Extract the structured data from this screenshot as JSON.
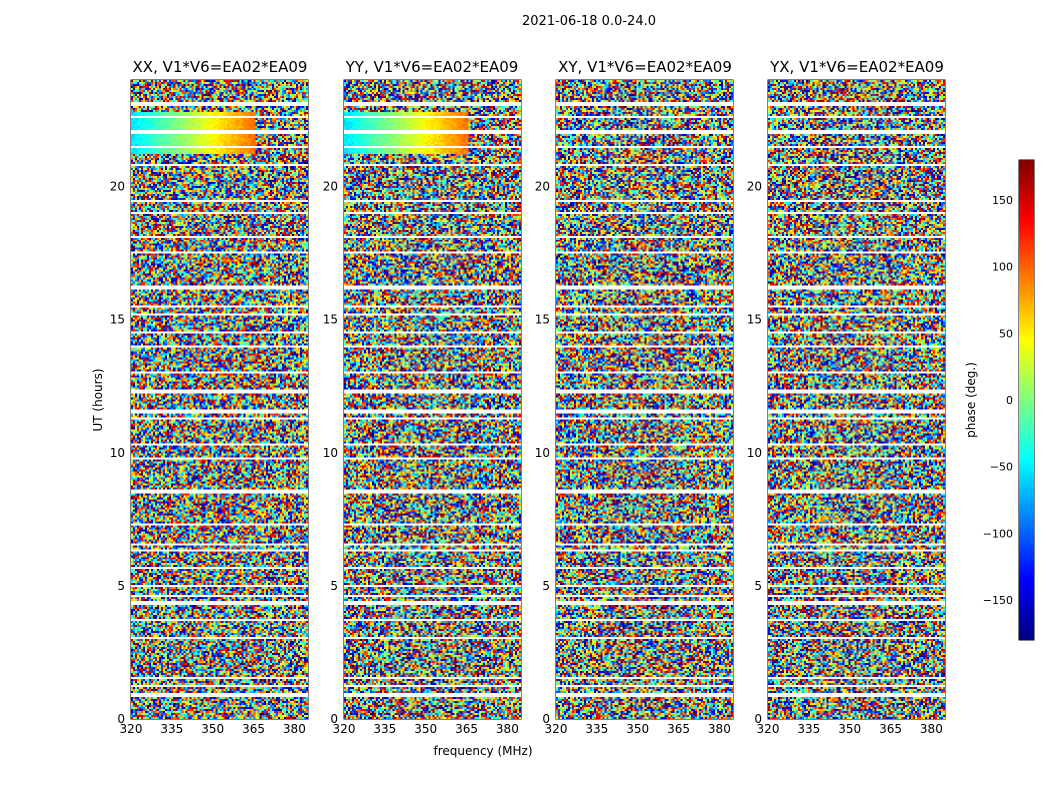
{
  "figure": {
    "suptitle": "2021-06-18 0.0-24.0"
  },
  "chart_data": {
    "type": "heatmap",
    "panels": [
      {
        "title": "XX, V1*V6=EA02*EA09"
      },
      {
        "title": "YY, V1*V6=EA02*EA09"
      },
      {
        "title": "XY, V1*V6=EA02*EA09"
      },
      {
        "title": "YX, V1*V6=EA02*EA09"
      }
    ],
    "xlabel": "frequency (MHz)",
    "ylabel": "UT (hours)",
    "xlim": [
      320,
      385
    ],
    "ylim": [
      0,
      24
    ],
    "xticks": [
      320,
      335,
      350,
      365,
      380
    ],
    "yticks": [
      0,
      5,
      10,
      15,
      20
    ],
    "flagged_ut_hours": [
      0.9,
      1.25,
      1.55,
      3.05,
      3.7,
      4.35,
      4.6,
      5.0,
      5.65,
      6.35,
      6.55,
      7.3,
      8.55,
      9.8,
      10.3,
      11.3,
      11.55,
      12.3,
      13.0,
      14.0,
      14.5,
      15.2,
      15.5,
      16.2,
      17.5,
      18.1,
      19.0,
      19.45,
      20.8,
      21.5,
      22.05,
      22.6,
      23.1
    ],
    "colorbar": {
      "label": "phase (deg.)",
      "range": [
        -180,
        180
      ],
      "ticks": [
        -150,
        -100,
        -50,
        0,
        50,
        100,
        150
      ],
      "colormap": "jet"
    }
  }
}
